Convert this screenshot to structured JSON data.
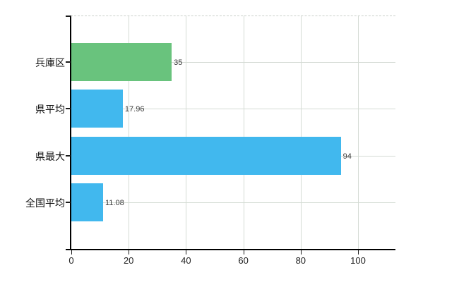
{
  "chart_data": {
    "type": "bar",
    "orientation": "horizontal",
    "title": "",
    "xlabel": "",
    "ylabel": "",
    "categories": [
      "兵庫区",
      "県平均",
      "県最大",
      "全国平均"
    ],
    "values": [
      35,
      17.96,
      94,
      11.08
    ],
    "value_labels": [
      "35",
      "17.96",
      "94",
      "11.08"
    ],
    "bar_colors": [
      "#69c37d",
      "#41b8ee",
      "#41b8ee",
      "#41b8ee"
    ],
    "bar_textured": [
      true,
      false,
      false,
      false
    ],
    "x_ticks": [
      0,
      20,
      40,
      60,
      80,
      100
    ],
    "x_tick_labels": [
      "0",
      "20",
      "40",
      "60",
      "80",
      "100"
    ],
    "xlim": [
      0,
      113
    ],
    "grid": true,
    "grid_color": "#d4dbd4",
    "top_border_style": "dashed",
    "axis_color": "#000000",
    "background_color": "#ffffff",
    "legend": false
  }
}
